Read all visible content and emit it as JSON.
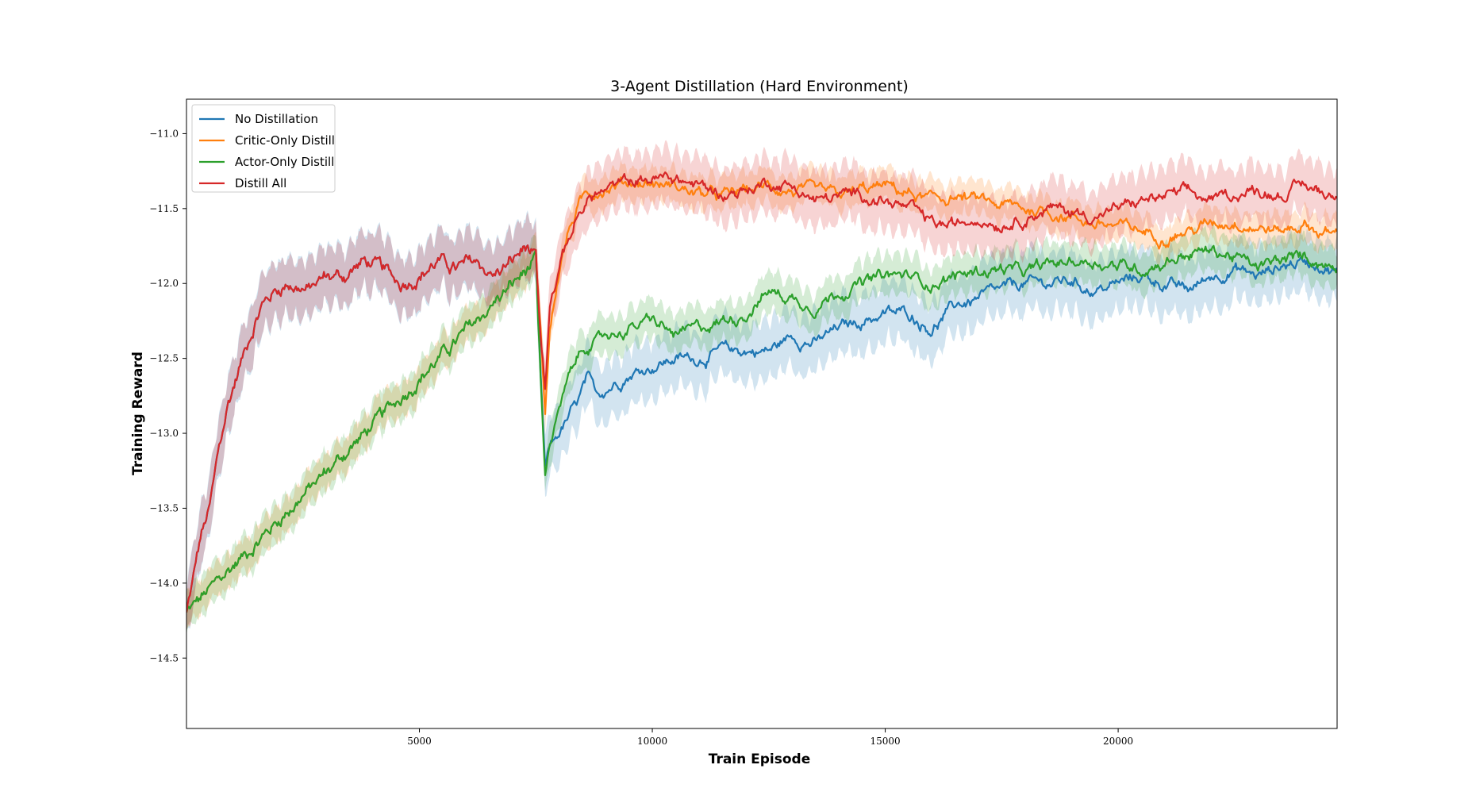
{
  "chart_data": {
    "type": "line",
    "title": "3-Agent Distillation (Hard Environment)",
    "xlabel": "Train Episode",
    "ylabel": "Training Reward",
    "xlim": [
      0,
      24700
    ],
    "ylim": [
      -14.97,
      -10.77
    ],
    "xticks": [
      5000,
      10000,
      15000,
      20000
    ],
    "xtick_labels": [
      "5000",
      "10000",
      "15000",
      "20000"
    ],
    "yticks": [
      -11.0,
      -11.5,
      -12.0,
      -12.5,
      -13.0,
      -13.5,
      -14.0,
      -14.5
    ],
    "ytick_labels": [
      "−11.0",
      "−11.5",
      "−12.0",
      "−12.5",
      "−13.0",
      "−13.5",
      "−14.0",
      "−14.5"
    ],
    "grid": false,
    "legend_position": "upper-left",
    "shared_until_x": 7500,
    "series": [
      {
        "name": "No Distillation",
        "color": "#1f77b4",
        "band": 0.18,
        "x": [
          0,
          100,
          300,
          500,
          700,
          900,
          1100,
          1300,
          1600,
          1900,
          2200,
          2600,
          3000,
          3400,
          3800,
          4200,
          4600,
          5000,
          5400,
          5800,
          6200,
          6600,
          7000,
          7300,
          7500,
          7600,
          7700,
          7800,
          8000,
          8200,
          8400,
          8600,
          8800,
          9000,
          9500,
          10000,
          10500,
          11000,
          11500,
          12000,
          12500,
          13000,
          13500,
          14000,
          14500,
          15000,
          15500,
          16000,
          16500,
          17000,
          17500,
          18000,
          18500,
          19000,
          19500,
          20000,
          20500,
          21000,
          21500,
          22000,
          22500,
          23000,
          23500,
          24000,
          24300,
          24700
        ],
        "y": [
          -14.2,
          -14.05,
          -13.7,
          -13.5,
          -13.1,
          -12.8,
          -12.6,
          -12.4,
          -12.15,
          -12.05,
          -12.0,
          -12.05,
          -11.95,
          -11.95,
          -11.85,
          -11.9,
          -12.0,
          -11.95,
          -11.85,
          -11.9,
          -11.85,
          -11.95,
          -11.85,
          -11.75,
          -11.85,
          -12.6,
          -13.25,
          -13.1,
          -13.0,
          -12.9,
          -12.8,
          -12.65,
          -12.75,
          -12.7,
          -12.6,
          -12.55,
          -12.5,
          -12.5,
          -12.45,
          -12.45,
          -12.45,
          -12.35,
          -12.4,
          -12.3,
          -12.25,
          -12.2,
          -12.2,
          -12.3,
          -12.15,
          -12.1,
          -12.05,
          -12.0,
          -12.0,
          -11.98,
          -12.05,
          -12.0,
          -11.95,
          -12.0,
          -12.05,
          -11.95,
          -11.9,
          -11.95,
          -11.88,
          -11.85,
          -11.86,
          -11.92
        ]
      },
      {
        "name": "Critic-Only Distill",
        "color": "#ff7f0e",
        "band": 0.1,
        "x": [
          0,
          7500,
          7600,
          7700,
          7800,
          8000,
          8200,
          8400,
          8600,
          8800,
          9000,
          9500,
          10000,
          10500,
          11000,
          11500,
          12000,
          12500,
          13000,
          13500,
          14000,
          14500,
          15000,
          15500,
          16000,
          16500,
          17000,
          17500,
          18000,
          18500,
          19000,
          19500,
          20000,
          20500,
          21000,
          21500,
          22000,
          22500,
          23000,
          23500,
          24000,
          24300,
          24700
        ],
        "y": [
          -14.2,
          -11.85,
          -12.3,
          -12.85,
          -12.3,
          -11.9,
          -11.65,
          -11.5,
          -11.4,
          -11.38,
          -11.35,
          -11.32,
          -11.33,
          -11.35,
          -11.4,
          -11.42,
          -11.38,
          -11.35,
          -11.38,
          -11.4,
          -11.42,
          -11.38,
          -11.35,
          -11.4,
          -11.45,
          -11.42,
          -11.45,
          -11.48,
          -11.5,
          -11.52,
          -11.55,
          -11.6,
          -11.62,
          -11.65,
          -11.68,
          -11.65,
          -11.6,
          -11.58,
          -11.62,
          -11.65,
          -11.6,
          -11.65,
          -11.68
        ]
      },
      {
        "name": "Actor-Only Distill",
        "color": "#2ca02c",
        "band": 0.12,
        "x": [
          0,
          7500,
          7600,
          7700,
          7800,
          8000,
          8200,
          8400,
          8600,
          8800,
          9000,
          9500,
          10000,
          10500,
          11000,
          11500,
          12000,
          12500,
          13000,
          13500,
          14000,
          14500,
          15000,
          15500,
          16000,
          16500,
          17000,
          17500,
          18000,
          18500,
          19000,
          19500,
          20000,
          20500,
          21000,
          21500,
          22000,
          22500,
          23000,
          23500,
          24000,
          24300,
          24700
        ],
        "y": [
          -14.2,
          -11.85,
          -12.6,
          -13.25,
          -13.05,
          -12.85,
          -12.65,
          -12.5,
          -12.4,
          -12.4,
          -12.35,
          -12.3,
          -12.25,
          -12.35,
          -12.3,
          -12.25,
          -12.2,
          -12.05,
          -12.1,
          -12.15,
          -12.05,
          -12.0,
          -11.95,
          -11.95,
          -12.0,
          -11.95,
          -11.92,
          -11.9,
          -11.93,
          -11.88,
          -11.85,
          -11.85,
          -11.88,
          -11.9,
          -11.85,
          -11.8,
          -11.78,
          -11.82,
          -11.9,
          -11.85,
          -11.82,
          -11.85,
          -11.9
        ]
      },
      {
        "name": "Distill All",
        "color": "#d62728",
        "band": 0.17,
        "x": [
          0,
          100,
          300,
          500,
          700,
          900,
          1100,
          1300,
          1600,
          1900,
          2200,
          2600,
          3000,
          3400,
          3800,
          4200,
          4600,
          5000,
          5400,
          5800,
          6200,
          6600,
          7000,
          7300,
          7500,
          7600,
          7700,
          7800,
          8000,
          8200,
          8400,
          8600,
          8800,
          9000,
          9500,
          10000,
          10500,
          11000,
          11500,
          12000,
          12500,
          13000,
          13500,
          14000,
          14500,
          15000,
          15500,
          16000,
          16500,
          17000,
          17500,
          18000,
          18500,
          19000,
          19500,
          20000,
          20500,
          21000,
          21500,
          22000,
          22500,
          23000,
          23500,
          24000,
          24300,
          24700
        ],
        "y": [
          -14.2,
          -14.05,
          -13.7,
          -13.5,
          -13.1,
          -12.8,
          -12.6,
          -12.4,
          -12.15,
          -12.05,
          -12.0,
          -12.05,
          -11.95,
          -11.95,
          -11.85,
          -11.9,
          -12.0,
          -11.95,
          -11.85,
          -11.9,
          -11.85,
          -11.95,
          -11.85,
          -11.75,
          -11.85,
          -12.3,
          -12.65,
          -12.1,
          -11.9,
          -11.7,
          -11.55,
          -11.45,
          -11.4,
          -11.38,
          -11.32,
          -11.3,
          -11.3,
          -11.35,
          -11.4,
          -11.38,
          -11.32,
          -11.35,
          -11.45,
          -11.42,
          -11.4,
          -11.45,
          -11.5,
          -11.6,
          -11.62,
          -11.55,
          -11.6,
          -11.55,
          -11.5,
          -11.52,
          -11.55,
          -11.5,
          -11.45,
          -11.42,
          -11.4,
          -11.45,
          -11.4,
          -11.38,
          -11.4,
          -11.35,
          -11.38,
          -11.42
        ]
      }
    ]
  }
}
